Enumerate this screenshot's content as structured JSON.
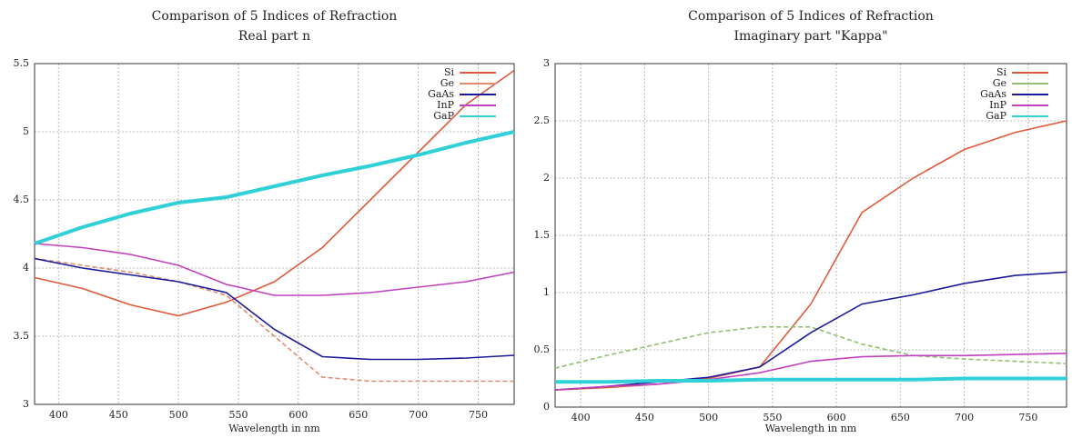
{
  "chart_data": [
    {
      "type": "line",
      "title": "Comparison of 5 Indices of Refraction",
      "subtitle": "Real part n",
      "x_label": "Wavelength in nm",
      "x": [
        380,
        420,
        460,
        500,
        540,
        580,
        620,
        660,
        700,
        740,
        780
      ],
      "xlim": [
        380,
        780
      ],
      "xticks": [
        400,
        450,
        500,
        550,
        600,
        650,
        700,
        750
      ],
      "ylim": [
        3,
        5.5
      ],
      "yticks": [
        3,
        3.5,
        4,
        4.5,
        5,
        5.5
      ],
      "grid": true,
      "legend": "upper-right",
      "series": [
        {
          "name": "Si",
          "color": "#e05a3a",
          "values": [
            3.93,
            3.85,
            3.73,
            3.65,
            3.75,
            3.9,
            4.15,
            4.5,
            4.85,
            5.2,
            5.45
          ]
        },
        {
          "name": "Ge",
          "color": "#e08a70",
          "values": [
            4.07,
            4.02,
            3.97,
            3.9,
            3.8,
            3.5,
            3.2,
            3.17,
            3.17,
            3.17,
            3.17
          ]
        },
        {
          "name": "GaAs",
          "color": "#1a1a9a",
          "values": [
            4.07,
            4.0,
            3.95,
            3.9,
            3.82,
            3.55,
            3.35,
            3.33,
            3.33,
            3.34,
            3.36
          ]
        },
        {
          "name": "InP",
          "color": "#c040c0",
          "values": [
            4.18,
            4.15,
            4.1,
            4.02,
            3.88,
            3.8,
            3.8,
            3.82,
            3.86,
            3.9,
            3.97
          ]
        },
        {
          "name": "GaP",
          "color": "#30d0d8",
          "values": [
            4.18,
            4.3,
            4.4,
            4.48,
            4.52,
            4.6,
            4.68,
            4.75,
            4.83,
            4.92,
            5.0
          ]
        }
      ]
    },
    {
      "type": "line",
      "title": "Comparison of 5 Indices of Refraction",
      "subtitle": "Imaginary part \"Kappa\"",
      "x_label": "Wavelength in nm",
      "x": [
        380,
        420,
        460,
        500,
        540,
        580,
        620,
        660,
        700,
        740,
        780
      ],
      "xlim": [
        380,
        780
      ],
      "xticks": [
        400,
        450,
        500,
        550,
        600,
        650,
        700,
        750
      ],
      "ylim": [
        0,
        3
      ],
      "yticks": [
        0,
        0.5,
        1,
        1.5,
        2,
        2.5,
        3
      ],
      "grid": true,
      "legend": "upper-right",
      "series": [
        {
          "name": "Si",
          "color": "#e05a3a",
          "values": [
            0.15,
            0.17,
            0.2,
            0.25,
            0.35,
            0.9,
            1.7,
            2.0,
            2.25,
            2.4,
            2.5
          ]
        },
        {
          "name": "Ge",
          "color": "#90c070",
          "values": [
            0.34,
            0.45,
            0.55,
            0.65,
            0.7,
            0.7,
            0.55,
            0.45,
            0.42,
            0.4,
            0.38
          ]
        },
        {
          "name": "GaAs",
          "color": "#1a1a9a",
          "values": [
            0.15,
            0.18,
            0.22,
            0.26,
            0.35,
            0.65,
            0.9,
            0.98,
            1.08,
            1.15,
            1.18
          ]
        },
        {
          "name": "InP",
          "color": "#c040c0",
          "values": [
            0.15,
            0.18,
            0.2,
            0.24,
            0.3,
            0.4,
            0.44,
            0.45,
            0.45,
            0.46,
            0.47
          ]
        },
        {
          "name": "GaP",
          "color": "#30d0d8",
          "values": [
            0.22,
            0.22,
            0.23,
            0.23,
            0.24,
            0.24,
            0.24,
            0.24,
            0.25,
            0.25,
            0.25
          ]
        }
      ]
    }
  ]
}
